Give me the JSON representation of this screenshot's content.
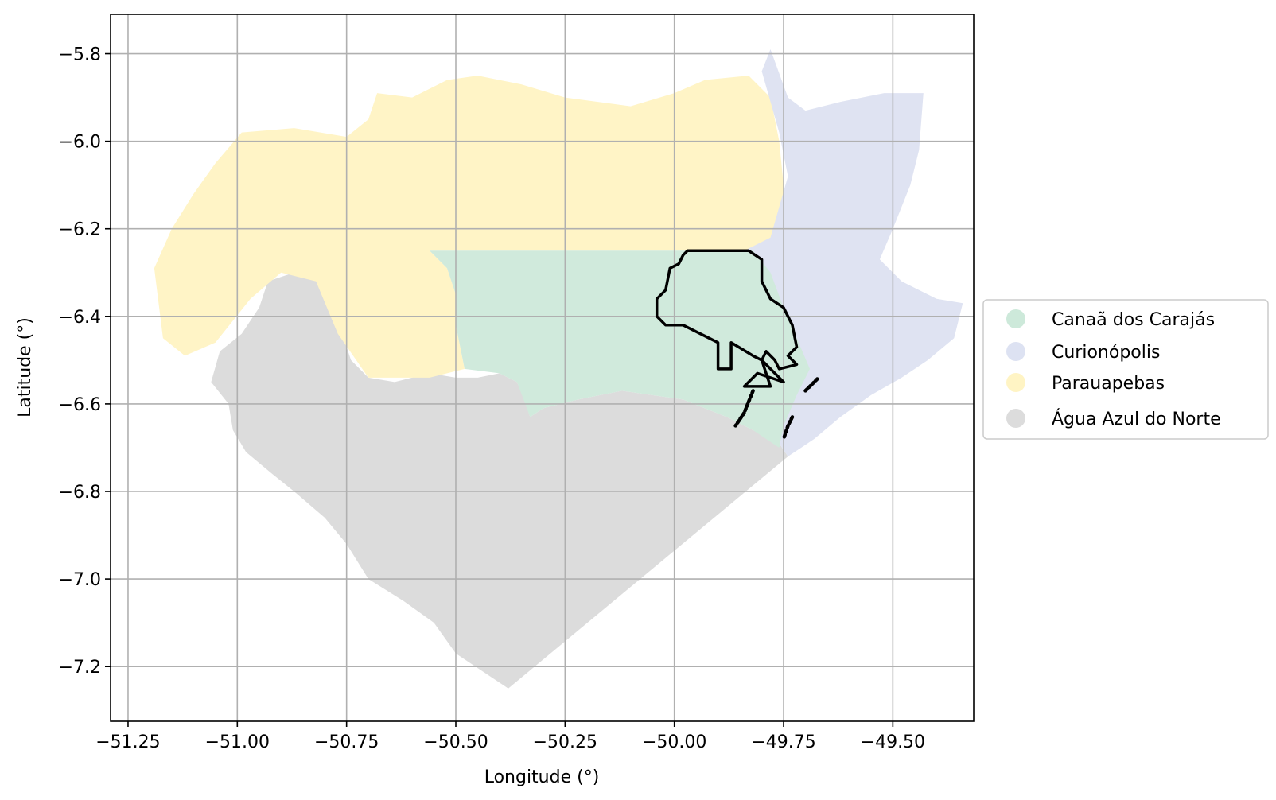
{
  "chart_data": {
    "type": "map",
    "xlabel": "Longitude (°)",
    "ylabel": "Latitude (°)",
    "xlim": [
      -51.29,
      -49.315
    ],
    "ylim": [
      -7.325,
      -5.71
    ],
    "grid": true,
    "legend_placement": "right-outside",
    "x_ticks": [
      {
        "value": -51.25,
        "label": "−51.25"
      },
      {
        "value": -51.0,
        "label": "−51.00"
      },
      {
        "value": -50.75,
        "label": "−50.75"
      },
      {
        "value": -50.5,
        "label": "−50.50"
      },
      {
        "value": -50.25,
        "label": "−50.25"
      },
      {
        "value": -50.0,
        "label": "−50.00"
      },
      {
        "value": -49.75,
        "label": "−49.75"
      },
      {
        "value": -49.5,
        "label": "−49.50"
      }
    ],
    "y_ticks": [
      {
        "value": -5.8,
        "label": "−5.8"
      },
      {
        "value": -6.0,
        "label": "−6.0"
      },
      {
        "value": -6.2,
        "label": "−6.2"
      },
      {
        "value": -6.4,
        "label": "−6.4"
      },
      {
        "value": -6.6,
        "label": "−6.6"
      },
      {
        "value": -6.8,
        "label": "−6.8"
      },
      {
        "value": -7.0,
        "label": "−7.0"
      },
      {
        "value": -7.2,
        "label": "−7.2"
      }
    ],
    "regions": [
      {
        "name": "Água Azul do Norte",
        "color": "#dcdcdc",
        "polygon": [
          [
            -50.93,
            -6.32
          ],
          [
            -50.87,
            -6.3
          ],
          [
            -50.82,
            -6.31
          ],
          [
            -50.78,
            -6.34
          ],
          [
            -50.77,
            -6.41
          ],
          [
            -50.74,
            -6.5
          ],
          [
            -50.7,
            -6.54
          ],
          [
            -50.64,
            -6.55
          ],
          [
            -50.56,
            -6.53
          ],
          [
            -50.5,
            -6.54
          ],
          [
            -50.45,
            -6.54
          ],
          [
            -50.4,
            -6.53
          ],
          [
            -50.36,
            -6.55
          ],
          [
            -50.34,
            -6.6
          ],
          [
            -50.33,
            -6.63
          ],
          [
            -50.3,
            -6.61
          ],
          [
            -50.22,
            -6.59
          ],
          [
            -50.12,
            -6.57
          ],
          [
            -50.05,
            -6.58
          ],
          [
            -49.98,
            -6.59
          ],
          [
            -49.88,
            -6.63
          ],
          [
            -49.82,
            -6.66
          ],
          [
            -49.76,
            -6.69
          ],
          [
            -49.74,
            -6.72
          ],
          [
            -50.38,
            -7.25
          ],
          [
            -50.5,
            -7.17
          ],
          [
            -50.55,
            -7.1
          ],
          [
            -50.62,
            -7.05
          ],
          [
            -50.7,
            -7.0
          ],
          [
            -50.75,
            -6.92
          ],
          [
            -50.8,
            -6.86
          ],
          [
            -50.87,
            -6.8
          ],
          [
            -50.92,
            -6.76
          ],
          [
            -50.98,
            -6.71
          ],
          [
            -51.01,
            -6.66
          ],
          [
            -51.02,
            -6.6
          ],
          [
            -51.06,
            -6.55
          ],
          [
            -51.04,
            -6.48
          ],
          [
            -50.99,
            -6.44
          ],
          [
            -50.95,
            -6.38
          ]
        ]
      },
      {
        "name": "Parauapebas",
        "color": "#fff4c6",
        "polygon": [
          [
            -51.19,
            -6.29
          ],
          [
            -51.15,
            -6.2
          ],
          [
            -51.1,
            -6.12
          ],
          [
            -51.05,
            -6.05
          ],
          [
            -50.99,
            -5.98
          ],
          [
            -50.87,
            -5.97
          ],
          [
            -50.75,
            -5.99
          ],
          [
            -50.7,
            -5.95
          ],
          [
            -50.68,
            -5.89
          ],
          [
            -50.6,
            -5.9
          ],
          [
            -50.52,
            -5.86
          ],
          [
            -50.45,
            -5.85
          ],
          [
            -50.35,
            -5.87
          ],
          [
            -50.25,
            -5.9
          ],
          [
            -50.1,
            -5.92
          ],
          [
            -50.0,
            -5.89
          ],
          [
            -49.93,
            -5.86
          ],
          [
            -49.83,
            -5.85
          ],
          [
            -49.78,
            -5.9
          ],
          [
            -49.76,
            -6.0
          ],
          [
            -49.75,
            -6.1
          ],
          [
            -49.73,
            -6.2
          ],
          [
            -49.78,
            -6.24
          ],
          [
            -49.82,
            -6.25
          ],
          [
            -50.56,
            -6.25
          ],
          [
            -50.52,
            -6.29
          ],
          [
            -50.5,
            -6.35
          ],
          [
            -50.5,
            -6.42
          ],
          [
            -50.48,
            -6.52
          ],
          [
            -50.56,
            -6.54
          ],
          [
            -50.7,
            -6.54
          ],
          [
            -50.77,
            -6.44
          ],
          [
            -50.82,
            -6.32
          ],
          [
            -50.9,
            -6.3
          ],
          [
            -50.97,
            -6.36
          ],
          [
            -51.05,
            -6.46
          ],
          [
            -51.12,
            -6.49
          ],
          [
            -51.17,
            -6.45
          ]
        ]
      },
      {
        "name": "Curionópolis",
        "color": "#dfe3f2",
        "polygon": [
          [
            -49.78,
            -5.79
          ],
          [
            -49.74,
            -5.9
          ],
          [
            -49.7,
            -5.93
          ],
          [
            -49.62,
            -5.91
          ],
          [
            -49.52,
            -5.89
          ],
          [
            -49.43,
            -5.89
          ],
          [
            -49.44,
            -6.02
          ],
          [
            -49.46,
            -6.1
          ],
          [
            -49.5,
            -6.2
          ],
          [
            -49.53,
            -6.27
          ],
          [
            -49.48,
            -6.32
          ],
          [
            -49.4,
            -6.36
          ],
          [
            -49.34,
            -6.37
          ],
          [
            -49.36,
            -6.45
          ],
          [
            -49.42,
            -6.5
          ],
          [
            -49.48,
            -6.54
          ],
          [
            -49.55,
            -6.58
          ],
          [
            -49.62,
            -6.63
          ],
          [
            -49.68,
            -6.68
          ],
          [
            -49.74,
            -6.72
          ],
          [
            -49.78,
            -6.66
          ],
          [
            -49.72,
            -6.55
          ],
          [
            -49.74,
            -6.46
          ],
          [
            -49.76,
            -6.37
          ],
          [
            -49.8,
            -6.3
          ],
          [
            -49.84,
            -6.25
          ],
          [
            -49.78,
            -6.22
          ],
          [
            -49.74,
            -6.08
          ],
          [
            -49.76,
            -5.98
          ],
          [
            -49.8,
            -5.84
          ]
        ]
      },
      {
        "name": "Canaã dos Carajás",
        "color": "#d0eadc",
        "polygon": [
          [
            -50.56,
            -6.25
          ],
          [
            -49.82,
            -6.25
          ],
          [
            -49.78,
            -6.3
          ],
          [
            -49.75,
            -6.38
          ],
          [
            -49.72,
            -6.45
          ],
          [
            -49.69,
            -6.52
          ],
          [
            -49.72,
            -6.58
          ],
          [
            -49.75,
            -6.65
          ],
          [
            -49.76,
            -6.7
          ],
          [
            -49.82,
            -6.66
          ],
          [
            -49.88,
            -6.63
          ],
          [
            -49.98,
            -6.59
          ],
          [
            -50.05,
            -6.58
          ],
          [
            -50.12,
            -6.57
          ],
          [
            -50.22,
            -6.59
          ],
          [
            -50.3,
            -6.61
          ],
          [
            -50.33,
            -6.63
          ],
          [
            -50.36,
            -6.55
          ],
          [
            -50.4,
            -6.53
          ],
          [
            -50.48,
            -6.52
          ],
          [
            -50.5,
            -6.42
          ],
          [
            -50.5,
            -6.35
          ],
          [
            -50.52,
            -6.29
          ]
        ]
      }
    ],
    "outline": {
      "color": "#000000",
      "paths": [
        [
          [
            -49.97,
            -6.25
          ],
          [
            -49.83,
            -6.25
          ],
          [
            -49.8,
            -6.27
          ],
          [
            -49.8,
            -6.32
          ],
          [
            -49.78,
            -6.36
          ],
          [
            -49.75,
            -6.38
          ],
          [
            -49.73,
            -6.42
          ],
          [
            -49.72,
            -6.47
          ],
          [
            -49.74,
            -6.49
          ],
          [
            -49.72,
            -6.51
          ],
          [
            -49.76,
            -6.52
          ],
          [
            -49.77,
            -6.5
          ],
          [
            -49.79,
            -6.48
          ],
          [
            -49.8,
            -6.5
          ],
          [
            -49.75,
            -6.55
          ],
          [
            -49.81,
            -6.53
          ],
          [
            -49.84,
            -6.56
          ],
          [
            -49.78,
            -6.56
          ],
          [
            -49.8,
            -6.5
          ],
          [
            -49.82,
            -6.49
          ],
          [
            -49.87,
            -6.46
          ],
          [
            -49.87,
            -6.52
          ],
          [
            -49.9,
            -6.52
          ],
          [
            -49.9,
            -6.46
          ],
          [
            -49.94,
            -6.44
          ],
          [
            -49.98,
            -6.42
          ],
          [
            -50.02,
            -6.42
          ],
          [
            -50.04,
            -6.4
          ],
          [
            -50.04,
            -6.36
          ],
          [
            -50.02,
            -6.34
          ],
          [
            -50.01,
            -6.29
          ],
          [
            -49.99,
            -6.28
          ],
          [
            -49.98,
            -6.26
          ],
          [
            -49.97,
            -6.25
          ]
        ],
        [
          [
            -49.82,
            -6.57
          ],
          [
            -49.84,
            -6.62
          ],
          [
            -49.86,
            -6.65
          ]
        ],
        [
          [
            -49.73,
            -6.63
          ],
          [
            -49.74,
            -6.65
          ],
          [
            -49.75,
            -6.68
          ]
        ],
        [
          [
            -49.7,
            -6.57
          ],
          [
            -49.68,
            -6.55
          ],
          [
            -49.67,
            -6.54
          ]
        ]
      ]
    },
    "legend": [
      {
        "label": "Canaã dos Carajás",
        "color": "#cde9da"
      },
      {
        "label": "Curionópolis",
        "color": "#dde2f2"
      },
      {
        "label": "Parauapebas",
        "color": "#fff4c4"
      },
      {
        "label": "Água Azul do Norte",
        "color": "#dcdcdc"
      }
    ]
  }
}
